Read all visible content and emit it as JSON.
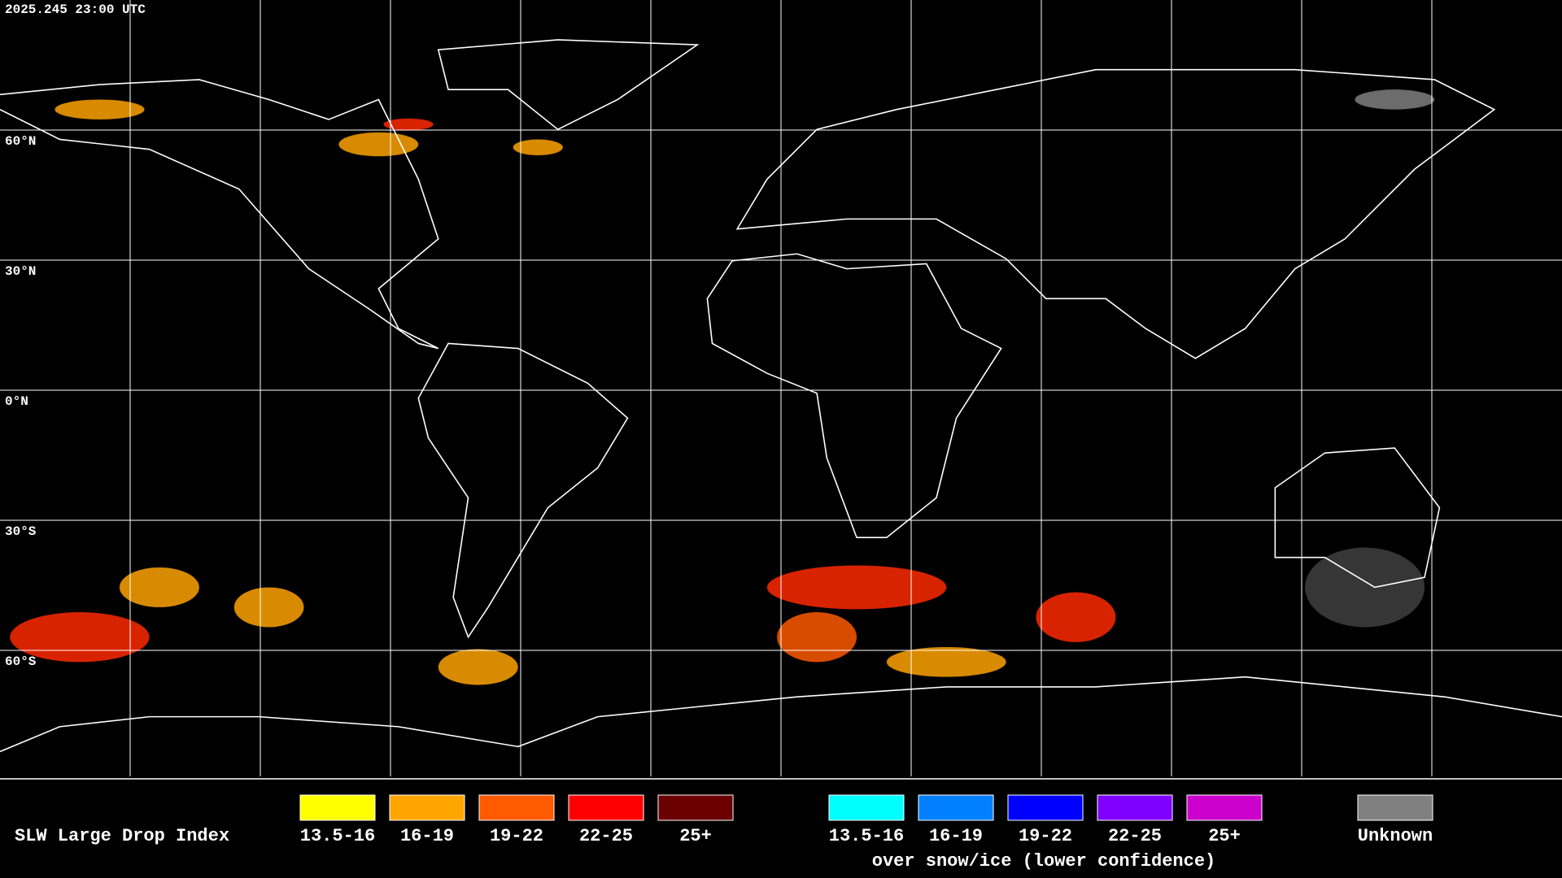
{
  "timestamp": "2025.245 23:00 UTC",
  "latitude_labels": [
    "60°N",
    "30°N",
    "0°N",
    "30°S",
    "60°S"
  ],
  "legend": {
    "title": "SLW Large Drop Index",
    "items": [
      {
        "label": "13.5-16",
        "color": "#ffff00"
      },
      {
        "label": "16-19",
        "color": "#ffa500"
      },
      {
        "label": "19-22",
        "color": "#ff5a00"
      },
      {
        "label": "22-25",
        "color": "#ff0000"
      },
      {
        "label": "25+",
        "color": "#6b0000"
      }
    ],
    "snow_items": [
      {
        "label": "13.5-16",
        "color": "#00ffff"
      },
      {
        "label": "16-19",
        "color": "#0080ff"
      },
      {
        "label": "19-22",
        "color": "#0000ff"
      },
      {
        "label": "22-25",
        "color": "#8000ff"
      },
      {
        "label": "25+",
        "color": "#cc00cc"
      }
    ],
    "snow_caption": "over snow/ice (lower confidence)",
    "unknown": {
      "label": "Unknown",
      "color": "#808080"
    }
  }
}
